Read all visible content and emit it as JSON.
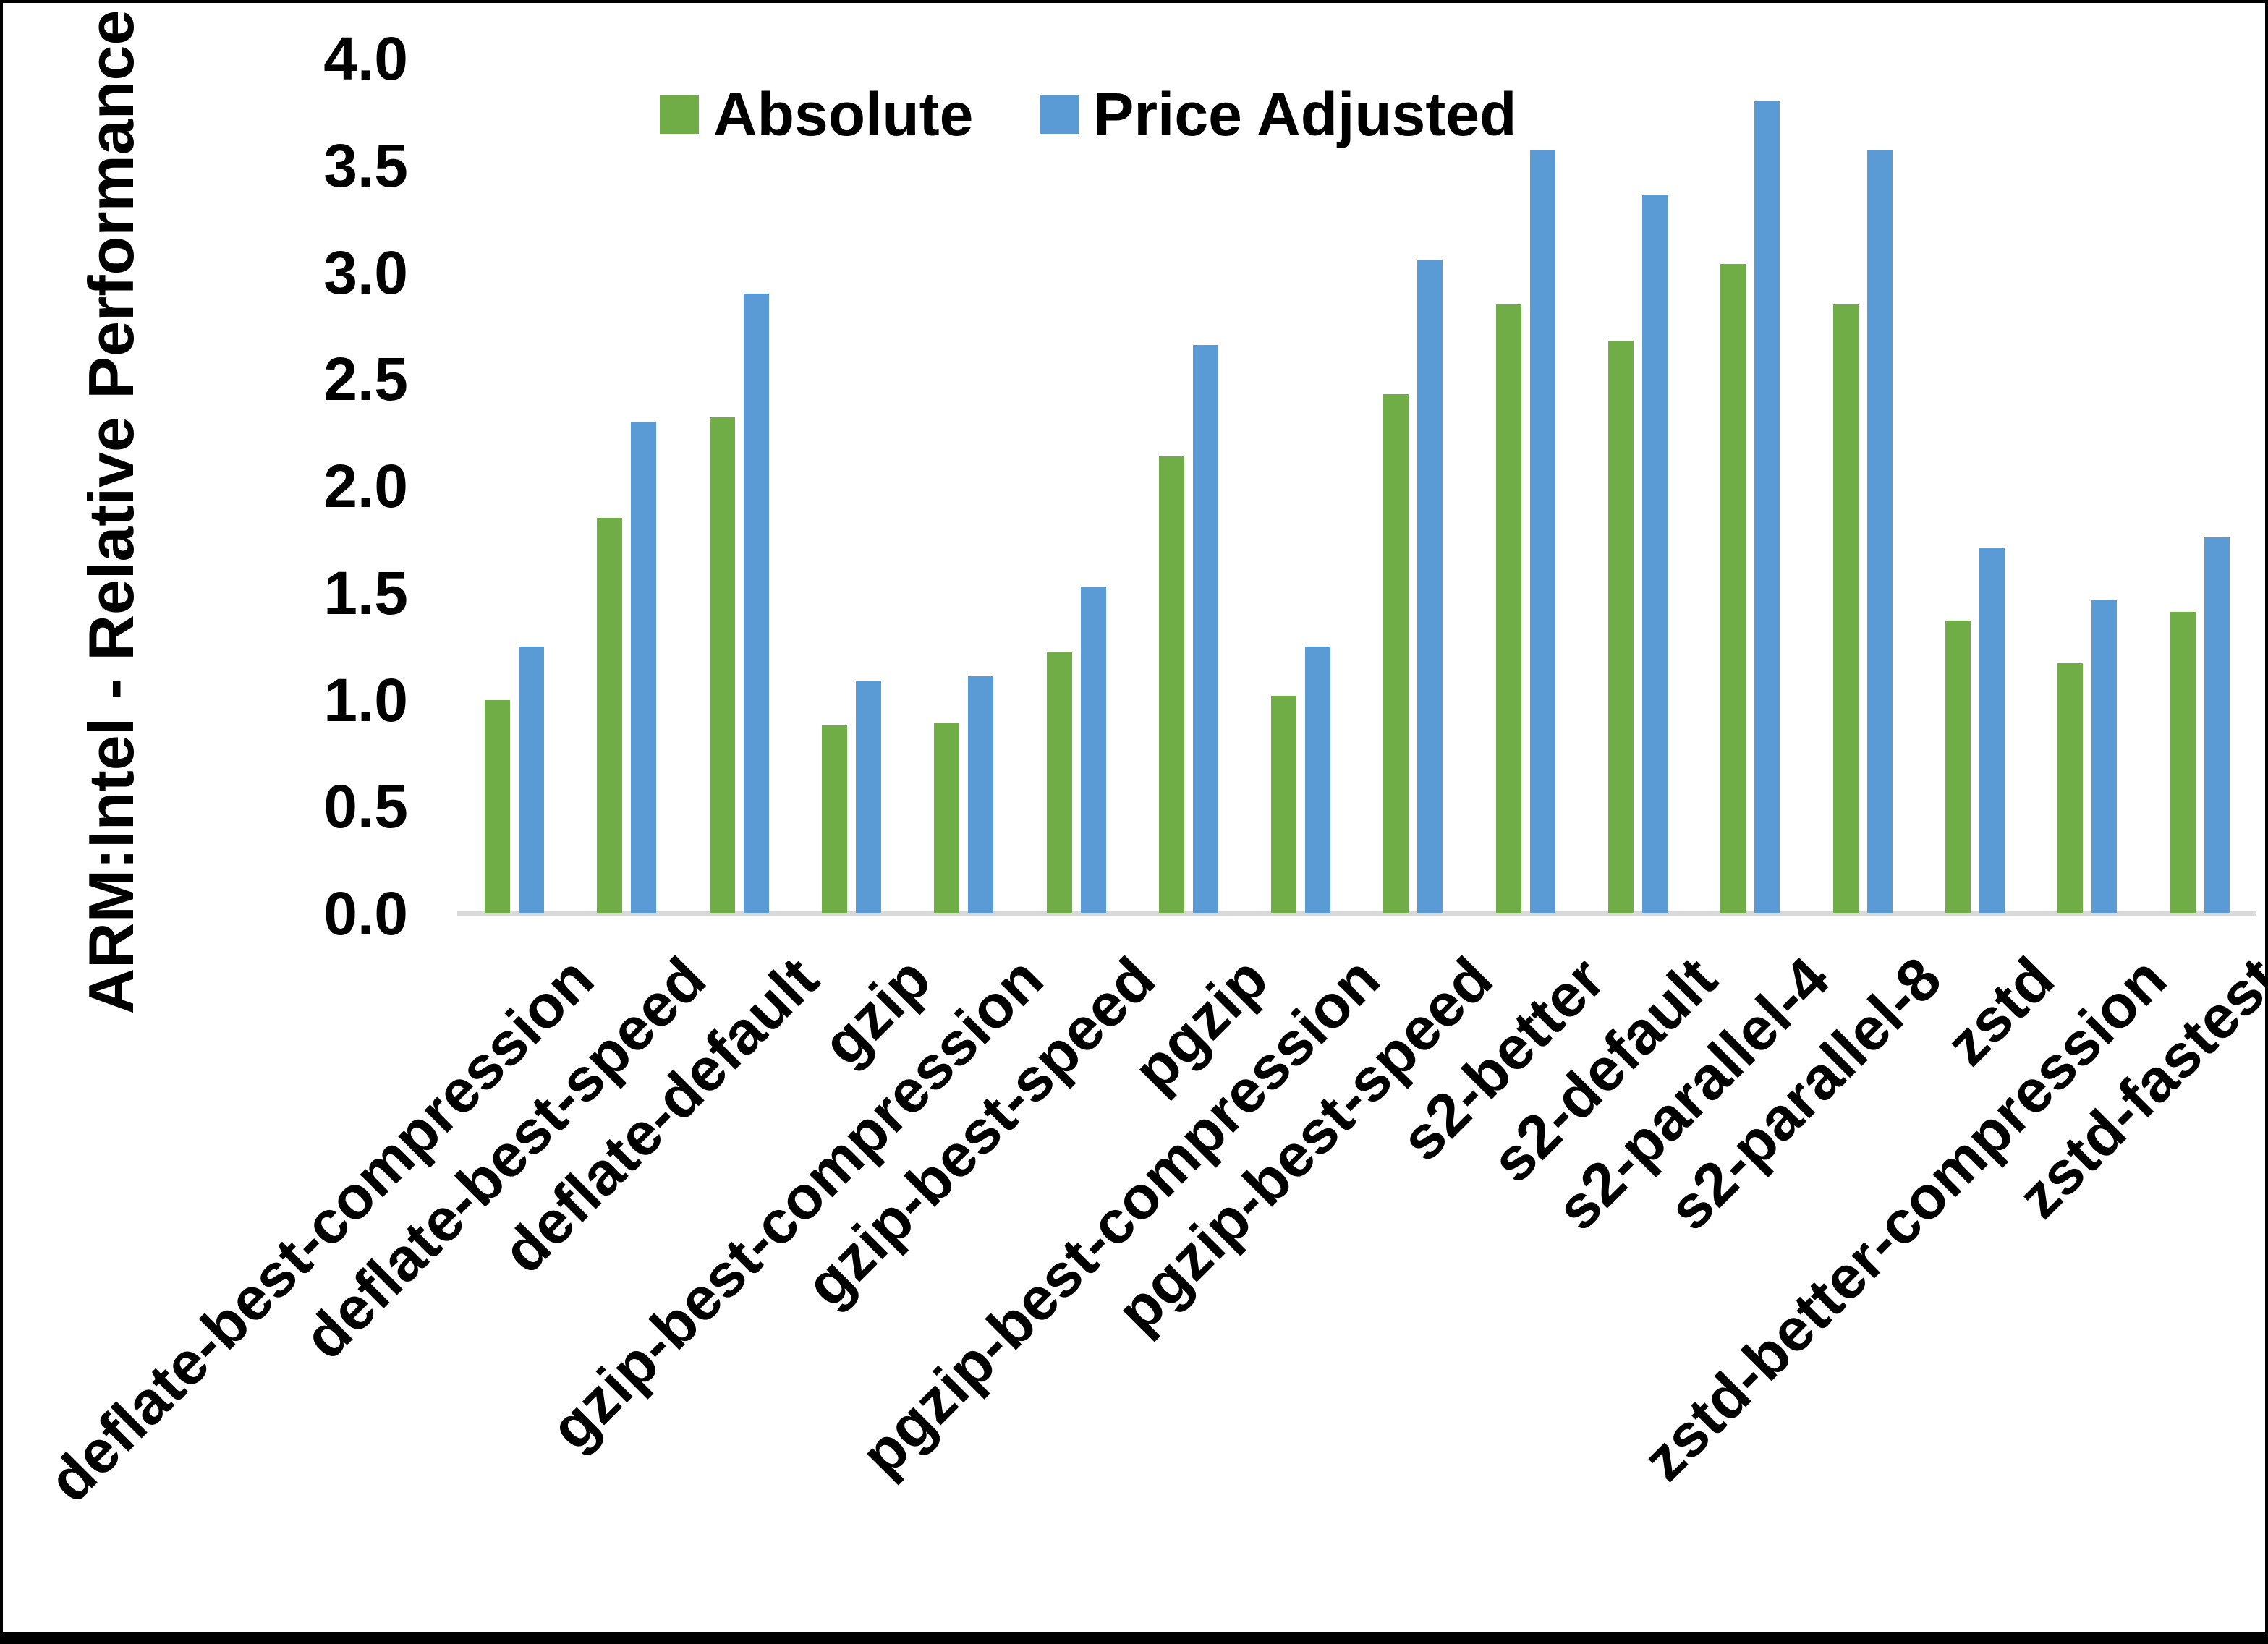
{
  "chart_data": {
    "type": "bar",
    "title": "",
    "xlabel": "",
    "ylabel": "ARM:Intel - Relative Performance",
    "ylim": [
      0.0,
      4.0
    ],
    "ytick_step": 0.5,
    "grid": false,
    "legend_position": "top-center",
    "background_color": "#ffffff",
    "axis_line_color": "#d9d9d9",
    "categories": [
      "deflate-best-compression",
      "deflate-best-speed",
      "deflate-default",
      "gzip",
      "gzip-best-compression",
      "gzip-best-speed",
      "pgzip",
      "pgzip-best-compression",
      "pgzip-best-speed",
      "s2-better",
      "s2-default",
      "s2-parallel-4",
      "s2-parallel-8",
      "zstd",
      "zstd-better-compression",
      "zstd-fastest"
    ],
    "series": [
      {
        "name": "Absolute",
        "color": "#70AD47",
        "values": [
          1.0,
          1.85,
          2.32,
          0.88,
          0.89,
          1.22,
          2.14,
          1.02,
          2.43,
          2.85,
          2.68,
          3.04,
          2.85,
          1.37,
          1.17,
          1.41
        ]
      },
      {
        "name": "Price Adjusted",
        "color": "#5B9BD5",
        "values": [
          1.25,
          2.3,
          2.9,
          1.09,
          1.11,
          1.53,
          2.66,
          1.25,
          3.06,
          3.57,
          3.36,
          3.8,
          3.57,
          1.71,
          1.47,
          1.76
        ]
      }
    ]
  }
}
